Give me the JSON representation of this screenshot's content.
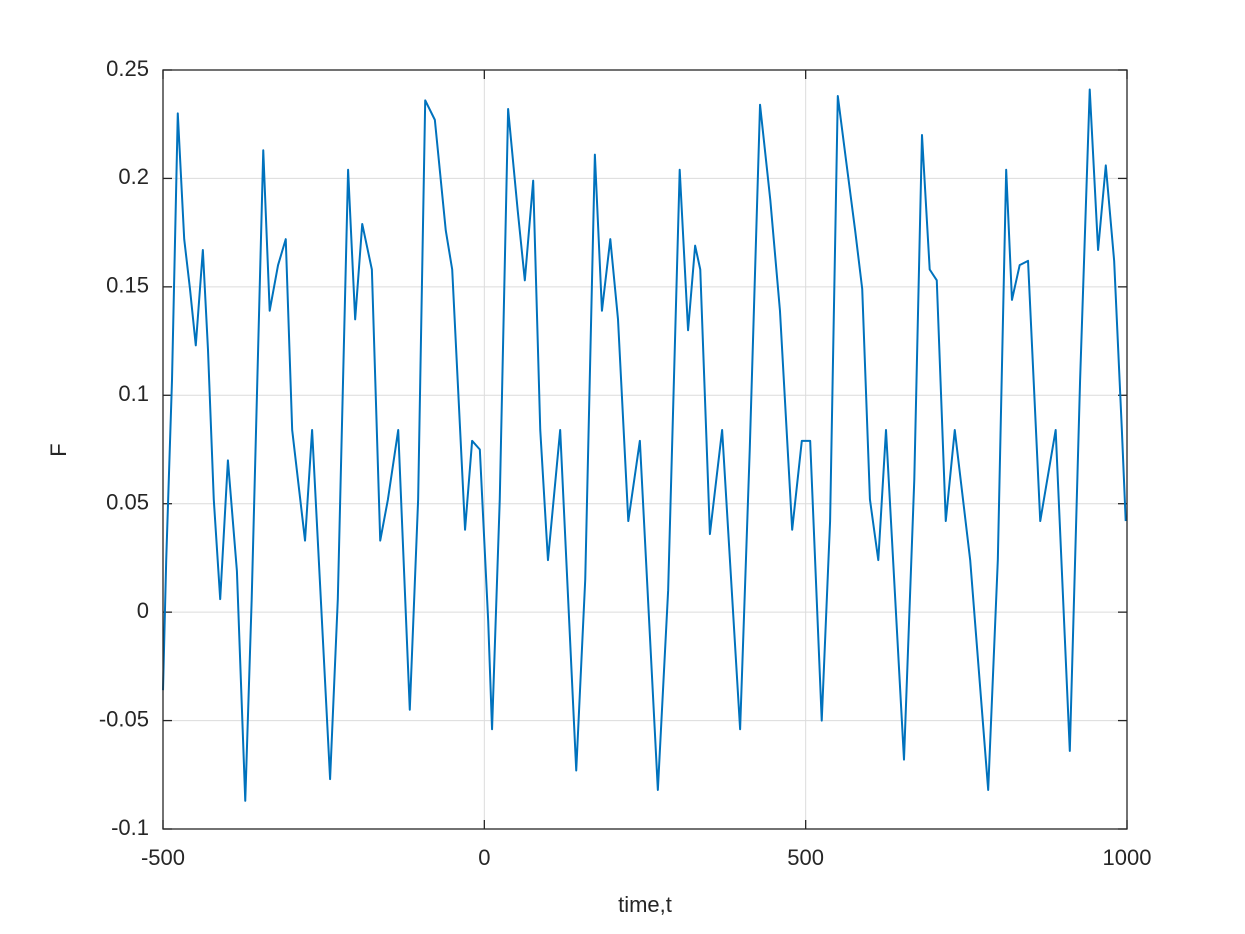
{
  "chart_data": {
    "type": "line",
    "x_label": "time,t",
    "y_label": "F",
    "xlim": [
      -500,
      1000
    ],
    "ylim": [
      -0.1,
      0.25
    ],
    "xticks": [
      -500,
      0,
      500,
      1000
    ],
    "yticks": [
      -0.1,
      -0.05,
      0,
      0.05,
      0.1,
      0.15,
      0.2,
      0.25
    ],
    "grid": true,
    "x": [
      -500,
      -495,
      -486,
      -477,
      -467,
      -458,
      -449,
      -438,
      -430,
      -421,
      -411,
      -399,
      -385,
      -372,
      -362,
      -352,
      -344,
      -334,
      -321,
      -309,
      -299,
      -279,
      -268,
      -256,
      -240,
      -228,
      -212,
      -201,
      -190,
      -175,
      -162,
      -150,
      -134,
      -116,
      -103,
      -92,
      -77,
      -60,
      -50,
      -30,
      -19,
      -7,
      6,
      12,
      24,
      37,
      52,
      63,
      76,
      87,
      99,
      118,
      143,
      157,
      172,
      183,
      196,
      208,
      224,
      242,
      270,
      286,
      304,
      317,
      328,
      336,
      351,
      370,
      398,
      413,
      429,
      445,
      460,
      479,
      494,
      507,
      525,
      538,
      550,
      563,
      577,
      588,
      600,
      613,
      625,
      653,
      669,
      681,
      693,
      704,
      718,
      732,
      756,
      784,
      799,
      812,
      821,
      833,
      846,
      865,
      889,
      911,
      927,
      942,
      955,
      967,
      980,
      992,
      998
    ],
    "series": [
      {
        "color": "#0072bd",
        "values": [
          -0.036,
          0.024,
          0.107,
          0.23,
          0.172,
          0.149,
          0.123,
          0.167,
          0.121,
          0.052,
          0.006,
          0.07,
          0.019,
          -0.087,
          0.006,
          0.121,
          0.213,
          0.139,
          0.16,
          0.172,
          0.084,
          0.033,
          0.084,
          0.015,
          -0.077,
          0.006,
          0.204,
          0.135,
          0.179,
          0.158,
          0.033,
          0.052,
          0.084,
          -0.045,
          0.052,
          0.236,
          0.227,
          0.176,
          0.158,
          0.038,
          0.079,
          0.075,
          -0.004,
          -0.054,
          0.052,
          0.232,
          0.185,
          0.153,
          0.199,
          0.084,
          0.024,
          0.084,
          -0.073,
          0.015,
          0.211,
          0.139,
          0.172,
          0.135,
          0.042,
          0.079,
          -0.082,
          0.01,
          0.204,
          0.13,
          0.169,
          0.158,
          0.036,
          0.084,
          -0.054,
          0.075,
          0.234,
          0.19,
          0.139,
          0.038,
          0.079,
          0.079,
          -0.05,
          0.042,
          0.238,
          0.208,
          0.176,
          0.149,
          0.052,
          0.024,
          0.084,
          -0.068,
          0.061,
          0.22,
          0.158,
          0.153,
          0.042,
          0.084,
          0.024,
          -0.082,
          0.024,
          0.204,
          0.144,
          0.16,
          0.162,
          0.042,
          0.084,
          -0.064,
          0.107,
          0.241,
          0.167,
          0.206,
          0.162,
          0.084,
          0.042
        ]
      }
    ]
  }
}
